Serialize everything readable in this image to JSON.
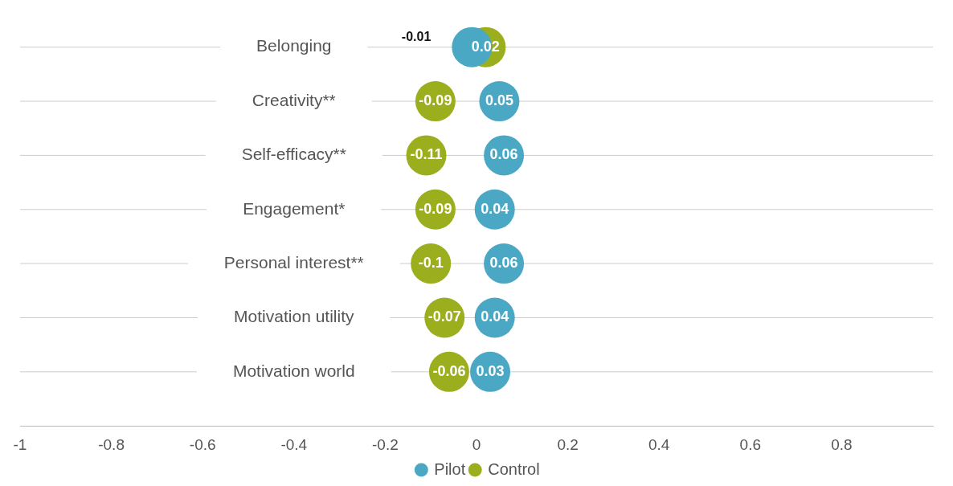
{
  "chart_data": {
    "type": "scatter",
    "orientation": "horizontal",
    "categories": [
      "Belonging",
      "Creativity**",
      "Self-efficacy**",
      "Engagement*",
      "Personal interest**",
      "Motivation utility",
      "Motivation world"
    ],
    "series": [
      {
        "name": "Pilot",
        "color": "#4ba8c4",
        "values": [
          -0.01,
          0.05,
          0.06,
          0.04,
          0.06,
          0.04,
          0.03
        ]
      },
      {
        "name": "Control",
        "color": "#9aae1e",
        "values": [
          0.02,
          -0.09,
          -0.11,
          -0.09,
          -0.1,
          -0.07,
          -0.06
        ]
      }
    ],
    "xlim": [
      -1,
      1
    ],
    "xticks": [
      -1,
      -0.8,
      -0.6,
      -0.4,
      -0.2,
      0,
      0.2,
      0.4,
      0.6,
      0.8
    ],
    "grid": "y",
    "legend": "bottom",
    "marker": "circle",
    "data_labels": true
  }
}
